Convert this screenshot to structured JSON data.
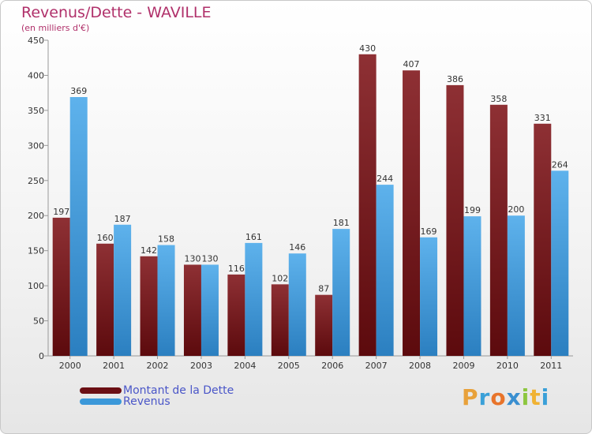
{
  "chart_data": {
    "type": "bar",
    "title": "Revenus/Dette - WAVILLE",
    "subtitle": "(en milliers d'€)",
    "categories": [
      "2000",
      "2001",
      "2002",
      "2003",
      "2004",
      "2005",
      "2006",
      "2007",
      "2008",
      "2009",
      "2010",
      "2011"
    ],
    "series": [
      {
        "name": "Montant de la Dette",
        "values": [
          197,
          160,
          142,
          130,
          116,
          102,
          87,
          430,
          407,
          386,
          358,
          331
        ],
        "color": "#7a1a1e"
      },
      {
        "name": "Revenus",
        "values": [
          369,
          187,
          158,
          130,
          161,
          146,
          181,
          244,
          169,
          199,
          200,
          264
        ],
        "color": "#3b98d9"
      }
    ],
    "ylim": [
      0,
      450
    ],
    "yticks": [
      0,
      50,
      100,
      150,
      200,
      250,
      300,
      350,
      400,
      450
    ],
    "grid": false,
    "legend": "bottom-left"
  },
  "logo": {
    "letters": [
      "P",
      "r",
      "o",
      "x",
      "i",
      "t",
      "i"
    ],
    "colors": [
      "#e8a13a",
      "#3aa0d8",
      "#e8742b",
      "#3a8fd0",
      "#8dc63f",
      "#f0b233",
      "#3aa0d8"
    ]
  }
}
